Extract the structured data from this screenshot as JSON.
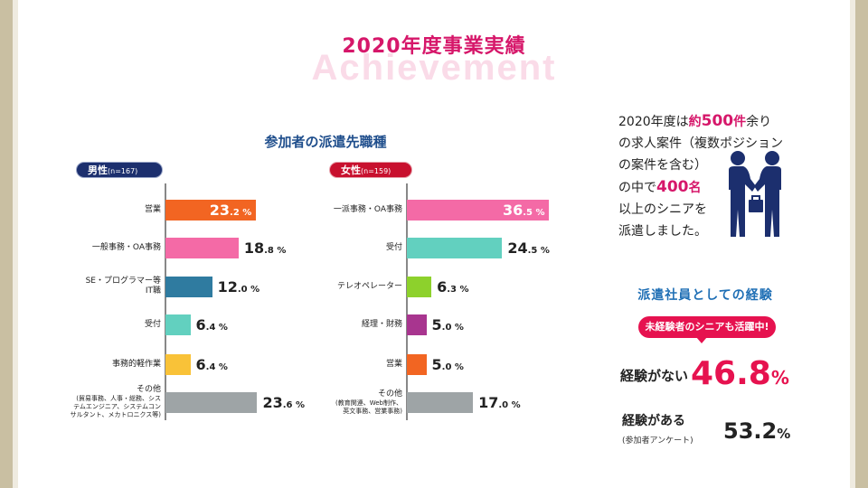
{
  "title": "2020年度事業実績",
  "subtitle": "Achievement",
  "chart_heading": "参加者の派遣先職種",
  "chart_data": [
    {
      "type": "bar",
      "label": "男性",
      "label_n": "(n=167)",
      "unit": "%",
      "categories": [
        {
          "label": "営業",
          "sub": ""
        },
        {
          "label": "一般事務・OA事務",
          "sub": ""
        },
        {
          "label": "SE・プログラマー等\nIT職",
          "sub": ""
        },
        {
          "label": "受付",
          "sub": ""
        },
        {
          "label": "事務的軽作業",
          "sub": ""
        },
        {
          "label": "その他",
          "sub": "(貿易事務、人事・総務、シス\nテムエンジニア、システムコン\nサルタント、メカトロニクス等)"
        }
      ],
      "values": [
        23.2,
        18.8,
        12.0,
        6.4,
        6.4,
        23.6
      ],
      "colors": [
        "#f26522",
        "#f46aa6",
        "#2f7ba0",
        "#62d0bf",
        "#f9c238",
        "#9ea4a6"
      ],
      "value_inside": [
        true,
        false,
        false,
        false,
        false,
        false
      ]
    },
    {
      "type": "bar",
      "label": "女性",
      "label_n": "(n=159)",
      "unit": "%",
      "categories": [
        {
          "label": "一派事務・OA事務",
          "sub": ""
        },
        {
          "label": "受付",
          "sub": ""
        },
        {
          "label": "テレオペレーター",
          "sub": ""
        },
        {
          "label": "経理・財務",
          "sub": ""
        },
        {
          "label": "営業",
          "sub": ""
        },
        {
          "label": "その他",
          "sub": "(教育関連、Web制作、\n英文事務、営業事務)"
        }
      ],
      "values": [
        36.5,
        24.5,
        6.3,
        5.0,
        5.0,
        17.0
      ],
      "colors": [
        "#f46aa6",
        "#62d0bf",
        "#8dd12c",
        "#a8358f",
        "#f26522",
        "#9ea4a6"
      ],
      "value_inside": [
        true,
        false,
        false,
        false,
        false,
        false
      ]
    }
  ],
  "note": {
    "parts": [
      {
        "t": "2020年度は",
        "hl": false
      },
      {
        "t": "約",
        "hl": true,
        "small": true
      },
      {
        "t": "500",
        "hl": true
      },
      {
        "t": "件",
        "hl": true,
        "small": true
      },
      {
        "t": "余り\nの求人案件（複数ポジション\nの案件を含む）\nの中で",
        "hl": false
      },
      {
        "t": "400",
        "hl": true
      },
      {
        "t": "名",
        "hl": true,
        "small": true
      },
      {
        "t": "\n以上のシニアを\n派遣しました。",
        "hl": false
      }
    ]
  },
  "icons": {
    "handshake": "handshake-icon"
  },
  "experience": {
    "heading": "派遣社員としての経験",
    "badge": "未経験者のシニアも活躍中!",
    "no_exp_label": "経験がない",
    "no_exp_value": "46.8",
    "yes_exp_label": "経験がある",
    "yes_exp_sub": "(参加者アンケート)",
    "yes_exp_value": "53.2",
    "unit": "%",
    "accent_color": "#e6124f"
  }
}
